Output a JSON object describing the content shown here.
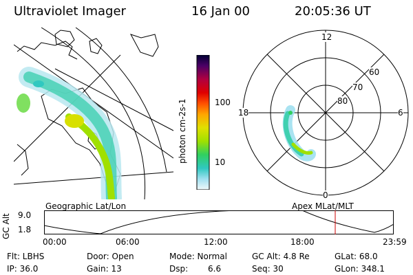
{
  "header": {
    "instrument": "Ultraviolet Imager",
    "date": "16 Jan 00",
    "time": "20:05:36 UT"
  },
  "colorbar": {
    "unit_label": "photon cm-2s-1",
    "tick_high": "100",
    "tick_low": "10"
  },
  "polar_plot": {
    "mlt_labels": {
      "top": "12",
      "left": "18",
      "right": "6",
      "bottom": "0"
    },
    "lat_labels": [
      "60",
      "70",
      "80"
    ]
  },
  "map_labels": {
    "geographic": "Geographic Lat/Lon",
    "apex": "Apex MLat/MLT"
  },
  "altitude_plot": {
    "axis_label": "GC Alt",
    "y_top": "9.0",
    "y_bottom": "1.8",
    "x_ticks": [
      "00:00",
      "06:00",
      "12:00",
      "18:00",
      "23:59"
    ],
    "current_time_marker": "20:05:36"
  },
  "info": {
    "flt": "Flt: LBHS",
    "ip": "IP: 36.0",
    "door": "Door: Open",
    "gain": "Gain: 13",
    "mode": "Mode: Normal",
    "dsp_label": "Dsp:",
    "dsp_value": "6.6",
    "gc_alt": "GC Alt: 4.8 Re",
    "seq": "Seq: 30",
    "glat": "GLat: 68.0",
    "glon": "GLon: 348.1"
  },
  "colors": {
    "marker": "#cc0000",
    "scale": [
      "#000033",
      "#4b0066",
      "#7a0060",
      "#b00040",
      "#e00000",
      "#ff5000",
      "#ffa500",
      "#e0e000",
      "#a0e000",
      "#30d060",
      "#30c8c0",
      "#a0e0f0",
      "#e8f4f8"
    ]
  }
}
